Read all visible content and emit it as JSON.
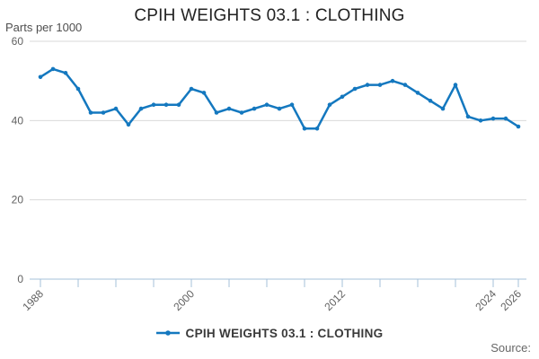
{
  "header": {
    "title": "CPIH WEIGHTS 03.1 : CLOTHING"
  },
  "y_axis": {
    "unit_label": "Parts per 1000"
  },
  "legend": {
    "label": "CPIH WEIGHTS 03.1 : CLOTHING"
  },
  "footer": {
    "source_label": "Source:"
  },
  "colors": {
    "line": "#1478bf",
    "gridline": "#d9d9d9",
    "axis": "#a6c0da",
    "tick_text": "#616161",
    "title_text": "#222222",
    "legend_text": "#3a3a3a",
    "source_text": "#666666",
    "background": "#ffffff"
  },
  "chart_data": {
    "type": "line",
    "title": "CPIH WEIGHTS 03.1 : CLOTHING",
    "xlabel": "",
    "ylabel": "Parts per 1000",
    "x": [
      1988,
      1989,
      1990,
      1991,
      1992,
      1993,
      1994,
      1995,
      1996,
      1997,
      1998,
      1999,
      2000,
      2001,
      2002,
      2003,
      2004,
      2005,
      2006,
      2007,
      2008,
      2009,
      2010,
      2011,
      2012,
      2013,
      2014,
      2015,
      2016,
      2017,
      2018,
      2019,
      2020,
      2021,
      2022,
      2023,
      2024,
      2025,
      2026
    ],
    "series": [
      {
        "name": "CPIH WEIGHTS 03.1 : CLOTHING",
        "values": [
          51,
          53,
          52,
          48,
          42,
          42,
          43,
          39,
          43,
          44,
          44,
          44,
          48,
          47,
          42,
          43,
          42,
          43,
          44,
          43,
          44,
          38,
          38,
          44,
          46,
          48,
          49,
          49,
          50,
          49,
          47,
          45,
          43,
          49,
          41,
          40,
          40.5,
          40.5,
          38.5
        ]
      }
    ],
    "xlim": [
      1988,
      2026
    ],
    "ylim": [
      0,
      60
    ],
    "y_ticks": [
      0,
      20,
      40,
      60
    ],
    "y_gridlines": [
      20,
      40,
      60
    ],
    "x_ticks": [
      1988,
      1991,
      1994,
      1997,
      2000,
      2003,
      2006,
      2009,
      2012,
      2015,
      2018,
      2021,
      2024,
      2026
    ],
    "x_tick_labels": [
      "1988",
      "2000",
      "2012",
      "2024",
      "2026"
    ],
    "grid": "horizontal-only",
    "legend_position": "bottom",
    "marker": "circle"
  }
}
